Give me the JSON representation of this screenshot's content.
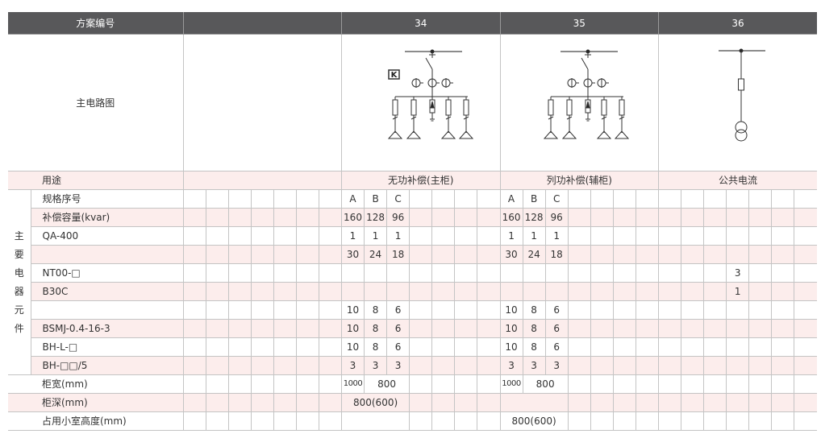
{
  "header": {
    "label": "方案编号",
    "schemes": [
      "",
      "34",
      "35",
      "36"
    ]
  },
  "diagram_row": {
    "label": "主电路图",
    "diagram_k_label": "K"
  },
  "usage_row": {
    "label": "用途",
    "values": [
      "",
      "无功补偿(主柜)",
      "列功补偿(辅柜)",
      "公共电流"
    ]
  },
  "section_label": "主要电器元件",
  "rows": [
    {
      "label": "规格序号",
      "g34": [
        "A",
        "B",
        "C"
      ],
      "g35": [
        "A",
        "B",
        "C"
      ],
      "g36": []
    },
    {
      "label": "补偿容量(kvar)",
      "g34": [
        "160",
        "128",
        "96"
      ],
      "g35": [
        "160",
        "128",
        "96"
      ],
      "g36": []
    },
    {
      "label": "QA-400",
      "g34": [
        "1",
        "1",
        "1"
      ],
      "g35": [
        "1",
        "1",
        "1"
      ],
      "g36": []
    },
    {
      "label": "",
      "g34": [
        "30",
        "24",
        "18"
      ],
      "g35": [
        "30",
        "24",
        "18"
      ],
      "g36": []
    },
    {
      "label": "NT00-□",
      "g34": [],
      "g35": [],
      "g36": [
        "",
        "",
        "",
        "3"
      ]
    },
    {
      "label": "B30C",
      "g34": [],
      "g35": [],
      "g36": [
        "",
        "",
        "",
        "1"
      ]
    },
    {
      "label": "",
      "g34": [
        "10",
        "8",
        "6"
      ],
      "g35": [
        "10",
        "8",
        "6"
      ],
      "g36": []
    },
    {
      "label": "BSMJ-0.4-16-3",
      "g34": [
        "10",
        "8",
        "6"
      ],
      "g35": [
        "10",
        "8",
        "6"
      ],
      "g36": []
    },
    {
      "label": "BH-L-□",
      "g34": [
        "10",
        "8",
        "6"
      ],
      "g35": [
        "10",
        "8",
        "6"
      ],
      "g36": []
    },
    {
      "label": "BH-□□/5",
      "g34": [
        "3",
        "3",
        "3"
      ],
      "g35": [
        "3",
        "3",
        "3"
      ],
      "g36": []
    }
  ],
  "cabinet": {
    "width": {
      "label": "柜宽(mm)",
      "g34": [
        "1000",
        "800"
      ],
      "g35": [
        "1000",
        "800"
      ]
    },
    "depth": {
      "label": "柜深(mm)",
      "g34": "800(600)"
    },
    "room_height": {
      "label": "占用小室高度(mm)",
      "g35": "800(600)"
    }
  },
  "colors": {
    "header_bg": "#58585a",
    "row_pink": "#fcedec",
    "grid": "#c4c4c4"
  }
}
